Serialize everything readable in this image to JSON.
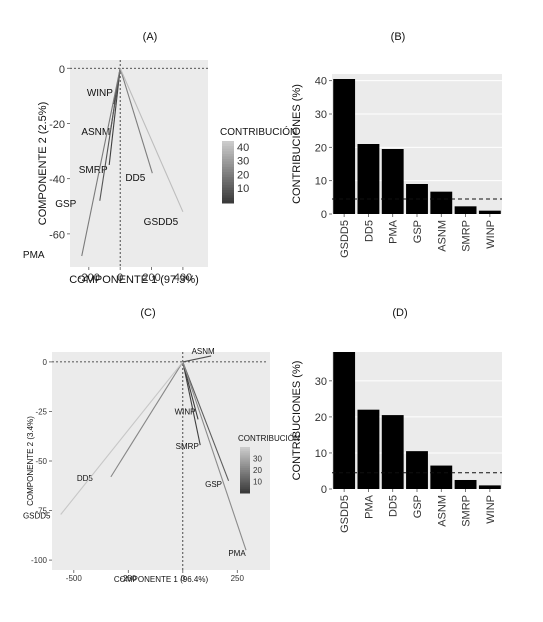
{
  "chart_data": [
    {
      "panel": "(A)",
      "type": "scatter",
      "xlabel": "COMPONENTE 1 (97.3%)",
      "ylabel": "COMPONENTE 2 (2.5%)",
      "xlim": [
        -320,
        560
      ],
      "ylim": [
        -72,
        3
      ],
      "xticks": [
        -200,
        0,
        200,
        400
      ],
      "yticks": [
        0,
        -20,
        -40,
        -60
      ],
      "legend": {
        "title": "CONTRIBUCIÓN",
        "ticks": [
          40,
          30,
          20,
          10
        ],
        "range": [
          0,
          45
        ],
        "position": "right"
      },
      "points": [
        {
          "label": "WINP",
          "x": -40,
          "y": -13,
          "contribution": 1
        },
        {
          "label": "ASNM",
          "x": -60,
          "y": -22,
          "contribution": 7
        },
        {
          "label": "SMRP",
          "x": -70,
          "y": -35,
          "contribution": 2
        },
        {
          "label": "GSP",
          "x": -130,
          "y": -48,
          "contribution": 9
        },
        {
          "label": "PMA",
          "x": -245,
          "y": -68,
          "contribution": 20
        },
        {
          "label": "DD5",
          "x": 205,
          "y": -38,
          "contribution": 21
        },
        {
          "label": "GSDD5",
          "x": 400,
          "y": -52,
          "contribution": 40
        }
      ]
    },
    {
      "panel": "(B)",
      "type": "bar",
      "ylabel": "CONTRIBUCIONES (%)",
      "ylim": [
        0,
        42
      ],
      "yticks": [
        0,
        10,
        20,
        30,
        40
      ],
      "reference_line": 4.5,
      "categories": [
        "GSDD5",
        "DD5",
        "PMA",
        "GSP",
        "ASNM",
        "SMRP",
        "WINP"
      ],
      "values": [
        40.5,
        21,
        19.5,
        9,
        6.7,
        2.3,
        1
      ]
    },
    {
      "panel": "(C)",
      "type": "scatter",
      "xlabel": "COMPONENTE 1 (96.4%)",
      "ylabel": "COMPONENTE 2 (3.4%)",
      "xlim": [
        -600,
        400
      ],
      "ylim": [
        -105,
        5
      ],
      "xticks": [
        -500,
        -250,
        0,
        250
      ],
      "yticks": [
        0,
        -25,
        -50,
        -75,
        -100
      ],
      "legend": {
        "title": "CONTRIBUCIÓN",
        "ticks": [
          30,
          20,
          10
        ],
        "range": [
          0,
          40
        ],
        "position": "right"
      },
      "points": [
        {
          "label": "ASNM",
          "x": 130,
          "y": 3,
          "contribution": 6
        },
        {
          "label": "WINP",
          "x": 70,
          "y": -29,
          "contribution": 1
        },
        {
          "label": "SMRP",
          "x": 80,
          "y": -42,
          "contribution": 2
        },
        {
          "label": "GSP",
          "x": 210,
          "y": -60,
          "contribution": 10
        },
        {
          "label": "PMA",
          "x": 290,
          "y": -95,
          "contribution": 22
        },
        {
          "label": "DD5",
          "x": -330,
          "y": -58,
          "contribution": 21
        },
        {
          "label": "GSDD5",
          "x": -560,
          "y": -77,
          "contribution": 38
        }
      ]
    },
    {
      "panel": "(D)",
      "type": "bar",
      "ylabel": "CONTRIBUCIONES (%)",
      "ylim": [
        0,
        38
      ],
      "yticks": [
        0,
        10,
        20,
        30
      ],
      "reference_line": 4.5,
      "categories": [
        "GSDD5",
        "PMA",
        "DD5",
        "GSP",
        "ASNM",
        "SMRP",
        "WINP"
      ],
      "values": [
        38,
        22,
        20.5,
        10.5,
        6.5,
        2.5,
        1
      ]
    }
  ]
}
